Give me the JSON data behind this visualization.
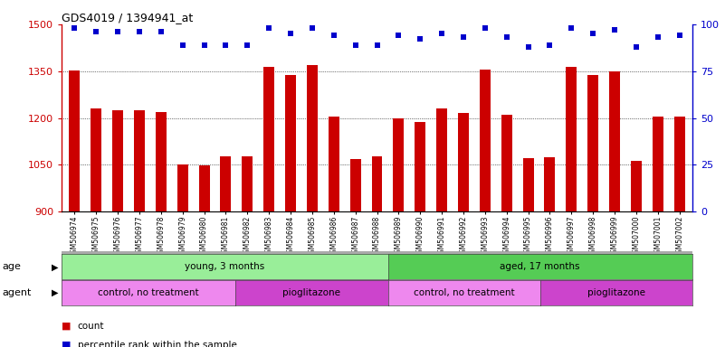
{
  "title": "GDS4019 / 1394941_at",
  "samples": [
    "GSM506974",
    "GSM506975",
    "GSM506976",
    "GSM506977",
    "GSM506978",
    "GSM506979",
    "GSM506980",
    "GSM506981",
    "GSM506982",
    "GSM506983",
    "GSM506984",
    "GSM506985",
    "GSM506986",
    "GSM506987",
    "GSM506988",
    "GSM506989",
    "GSM506990",
    "GSM506991",
    "GSM506992",
    "GSM506993",
    "GSM506994",
    "GSM506995",
    "GSM506996",
    "GSM506997",
    "GSM506998",
    "GSM506999",
    "GSM507000",
    "GSM507001",
    "GSM507002"
  ],
  "counts": [
    1352,
    1232,
    1224,
    1226,
    1220,
    1052,
    1047,
    1078,
    1076,
    1365,
    1337,
    1370,
    1205,
    1068,
    1078,
    1200,
    1188,
    1232,
    1215,
    1355,
    1210,
    1070,
    1075,
    1363,
    1337,
    1348,
    1063,
    1205,
    1205
  ],
  "percentiles": [
    98,
    96,
    96,
    96,
    96,
    89,
    89,
    89,
    89,
    98,
    95,
    98,
    94,
    89,
    89,
    94,
    92,
    95,
    93,
    98,
    93,
    88,
    89,
    98,
    95,
    97,
    88,
    93,
    94
  ],
  "ylim_left": [
    900,
    1500
  ],
  "ylim_right": [
    0,
    100
  ],
  "yticks_left": [
    900,
    1050,
    1200,
    1350,
    1500
  ],
  "yticks_right": [
    0,
    25,
    50,
    75,
    100
  ],
  "bar_color": "#cc0000",
  "dot_color": "#0000cc",
  "bg_color": "#ffffff",
  "age_groups": [
    {
      "label": "young, 3 months",
      "start": 0,
      "end": 15,
      "color": "#99ee99"
    },
    {
      "label": "aged, 17 months",
      "start": 15,
      "end": 29,
      "color": "#55cc55"
    }
  ],
  "agent_groups": [
    {
      "label": "control, no treatment",
      "start": 0,
      "end": 8,
      "color": "#ee88ee"
    },
    {
      "label": "pioglitazone",
      "start": 8,
      "end": 15,
      "color": "#cc44cc"
    },
    {
      "label": "control, no treatment",
      "start": 15,
      "end": 22,
      "color": "#ee88ee"
    },
    {
      "label": "pioglitazone",
      "start": 22,
      "end": 29,
      "color": "#cc44cc"
    }
  ]
}
